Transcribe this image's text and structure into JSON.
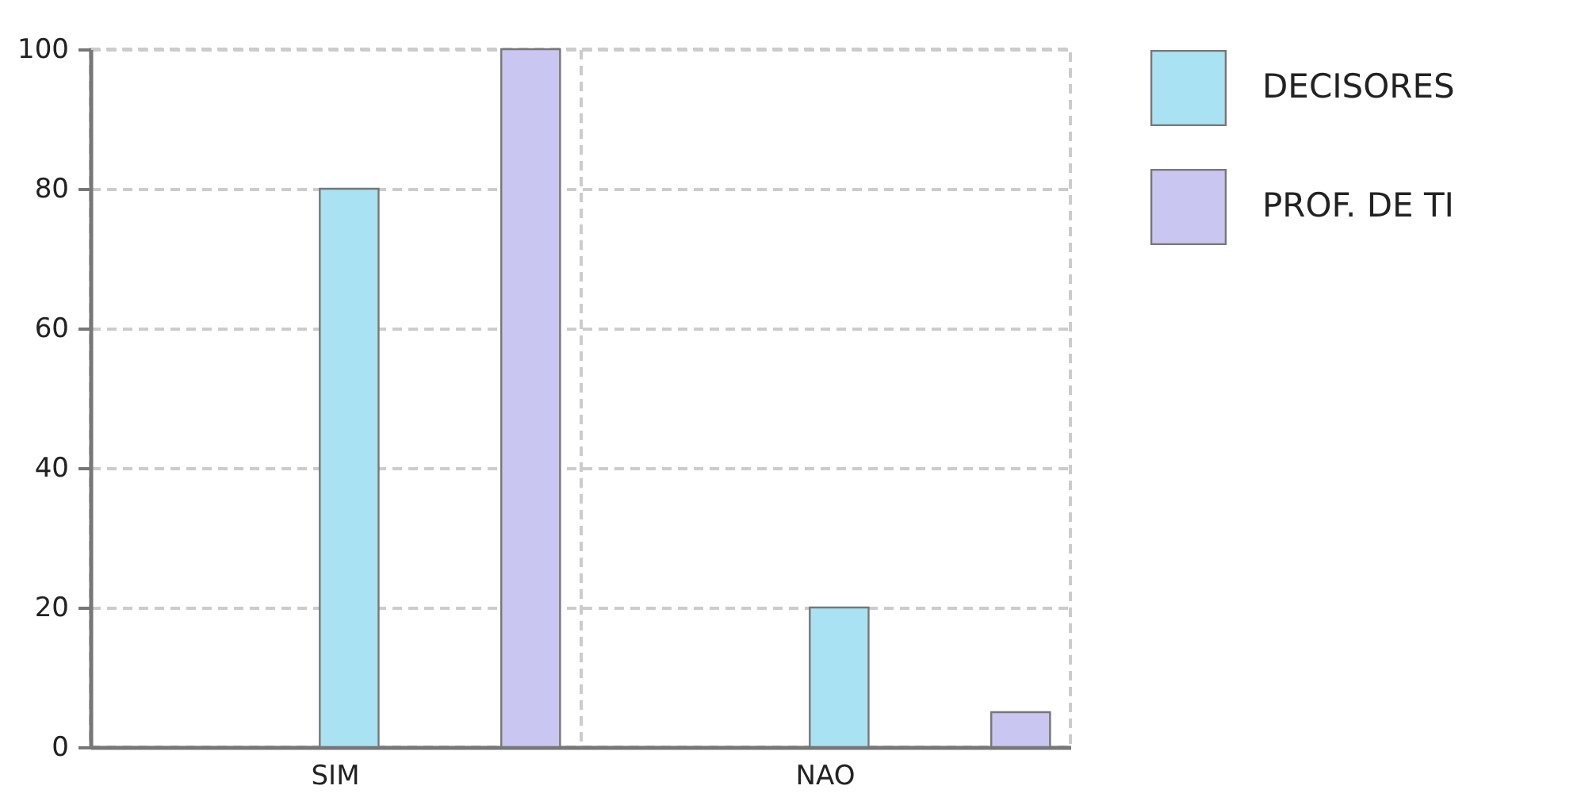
{
  "chart_data": {
    "type": "bar",
    "categories": [
      "SIM",
      "NAO"
    ],
    "series": [
      {
        "name": "DECISORES",
        "color": "#a9e2f2",
        "values": [
          80,
          20
        ]
      },
      {
        "name": "PROF.  DE TI",
        "color": "#c9c6f1",
        "values": [
          100,
          5
        ]
      }
    ],
    "ylim": [
      0,
      100
    ],
    "yticks": [
      0,
      20,
      40,
      60,
      80,
      100
    ],
    "grid": true,
    "legend": "right"
  }
}
